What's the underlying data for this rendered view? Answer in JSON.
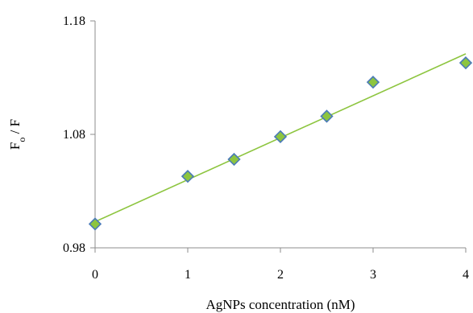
{
  "chart_data": {
    "type": "scatter",
    "title": "",
    "xlabel": "AgNPs concentration (nM)",
    "ylabel": {
      "parts": [
        {
          "text": "F",
          "sub": false
        },
        {
          "text": "o",
          "sub": true
        },
        {
          "text": " / F",
          "sub": false
        }
      ]
    },
    "xlim": [
      0,
      4
    ],
    "ylim": [
      0.98,
      1.18
    ],
    "xticks": [
      "0",
      "1",
      "2",
      "3",
      "4"
    ],
    "yticks": [
      "0.98",
      "1.08",
      "1.18"
    ],
    "xtick_values": [
      0,
      1,
      2,
      3,
      4
    ],
    "ytick_values": [
      0.98,
      1.08,
      1.18
    ],
    "grid": false,
    "legend": "none",
    "series": [
      {
        "x": [
          0,
          1,
          1.5,
          2,
          2.5,
          3,
          4
        ],
        "y": [
          1.001,
          1.043,
          1.058,
          1.078,
          1.096,
          1.126,
          1.143
        ]
      }
    ],
    "trendline": {
      "type": "linear",
      "x": [
        0,
        4
      ],
      "y": [
        1.003,
        1.151
      ]
    },
    "colors": {
      "marker_fill": "#8dc53f",
      "marker_edge": "#4a7ab8",
      "trendline": "#8dc53f",
      "axis": "#8c8c8c"
    }
  }
}
